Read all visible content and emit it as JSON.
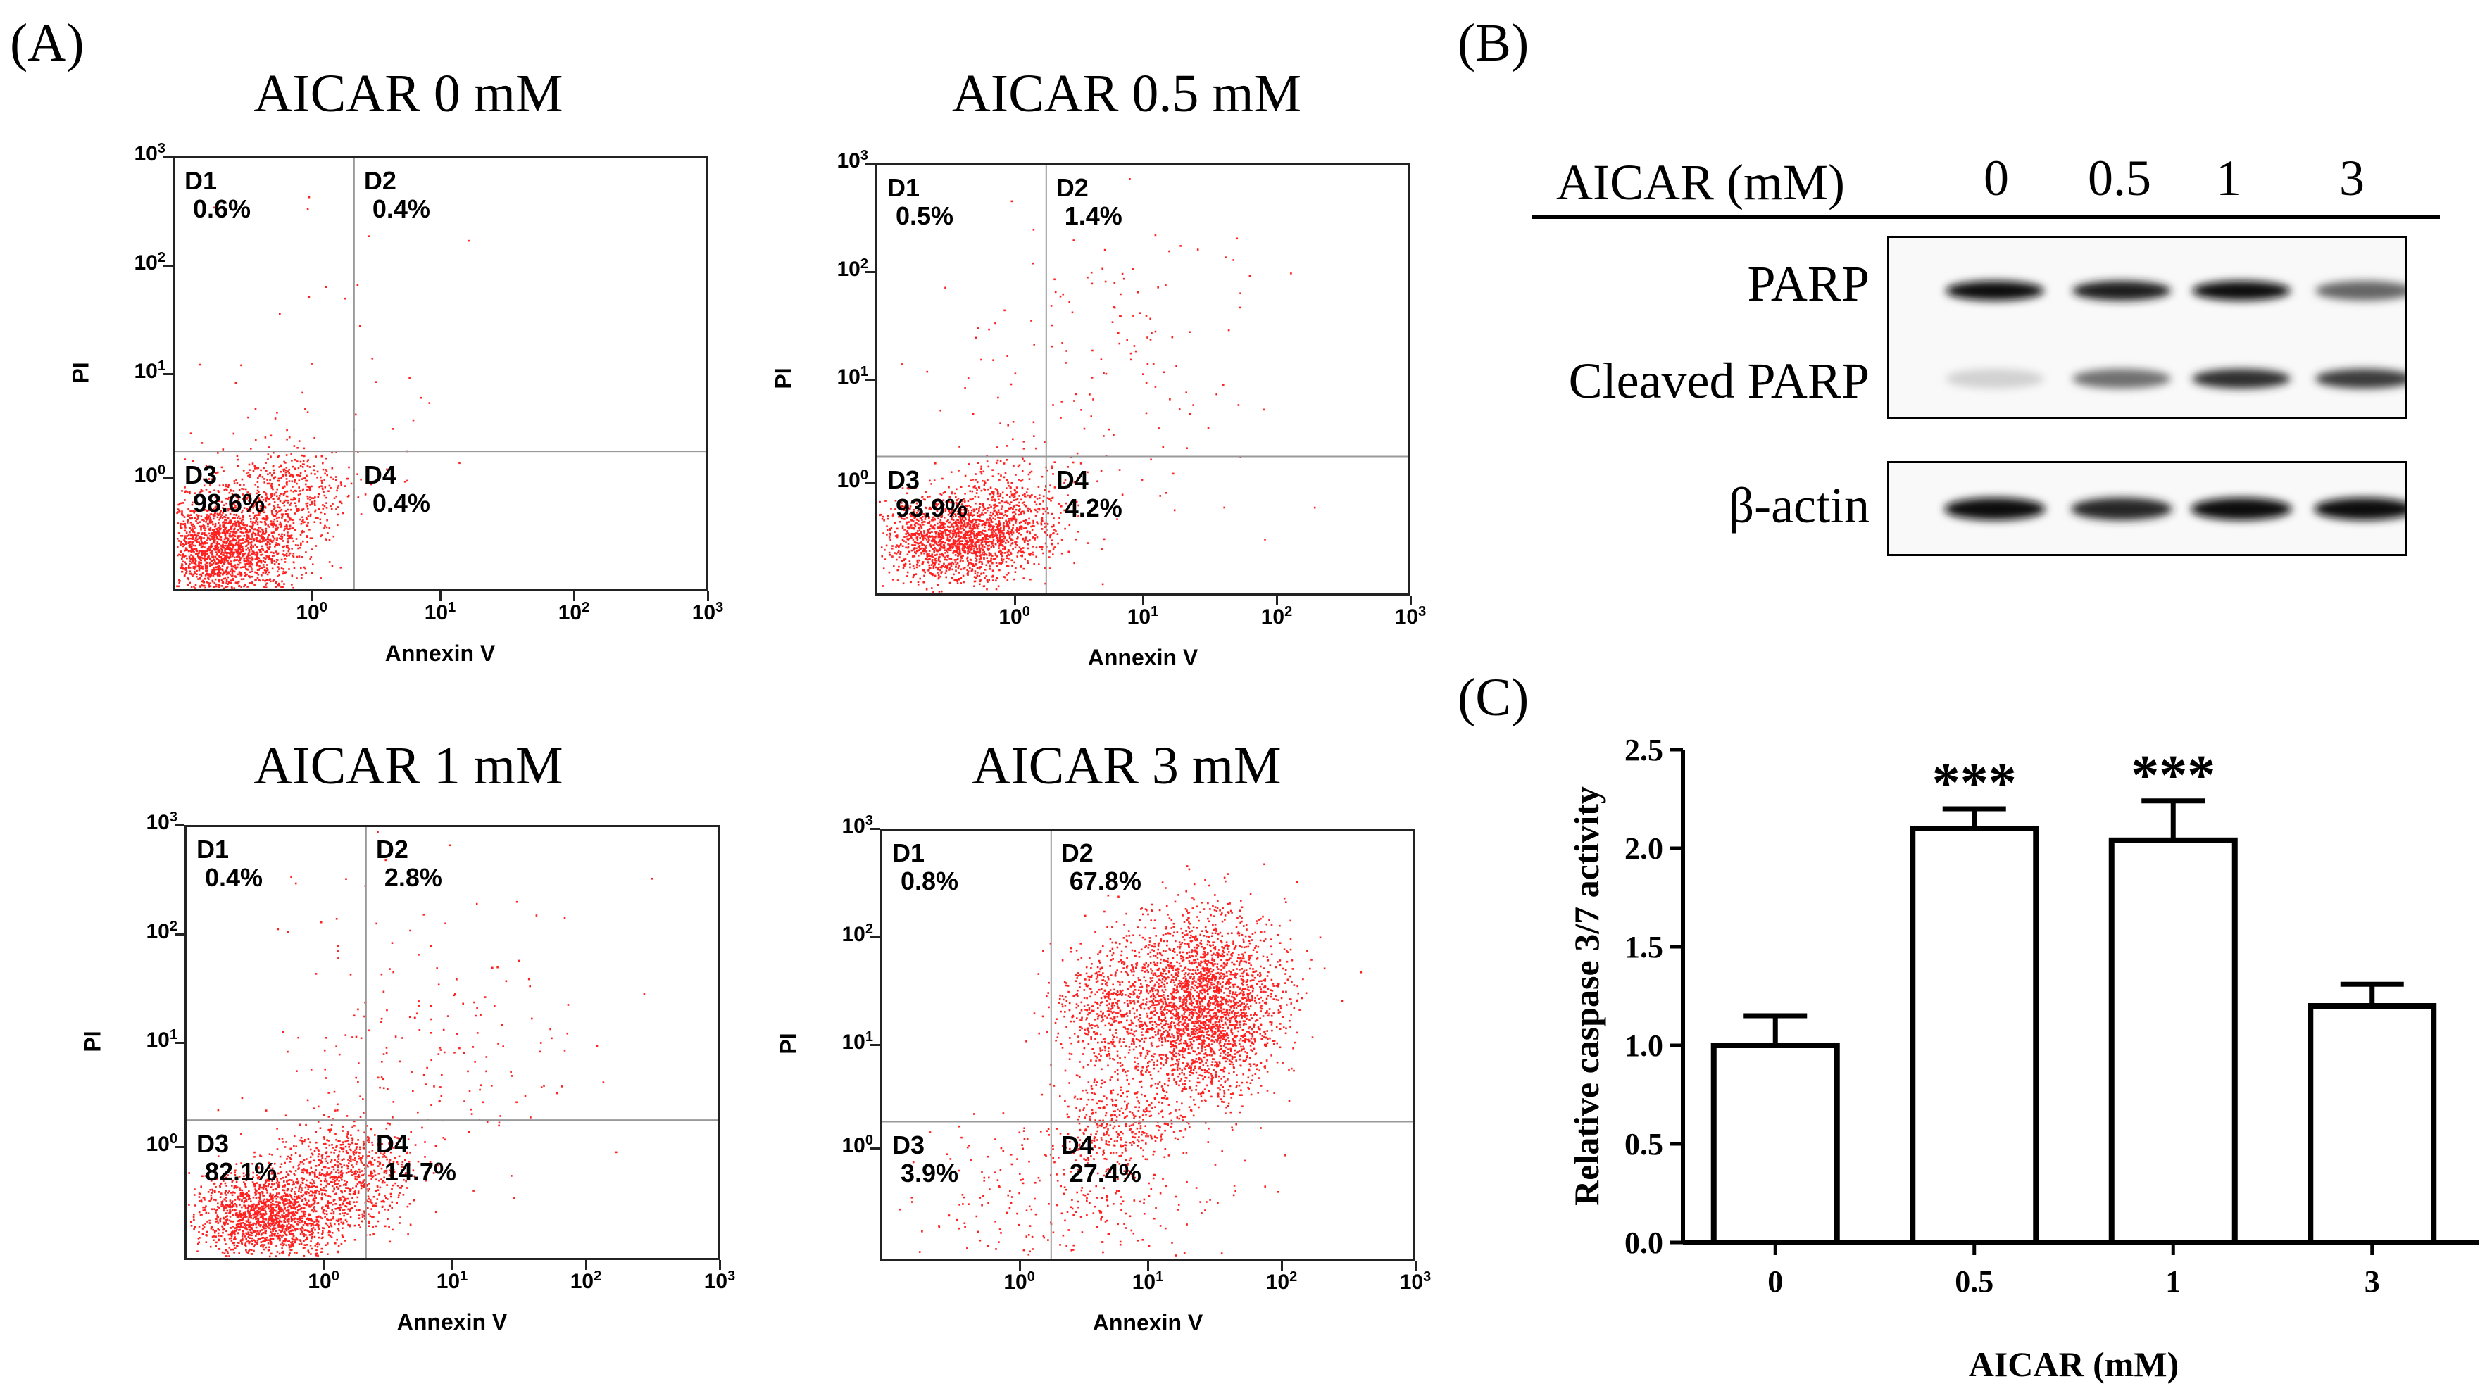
{
  "panel_labels": {
    "a": "(A)",
    "b": "(B)",
    "c": "(C)"
  },
  "flow_cytometry": {
    "x_axis_label": "Annexin V",
    "y_axis_label": "PI",
    "x_tick_base": "10",
    "y_tick_base": "10",
    "x_tick_exponents": [
      "0",
      "1",
      "2",
      "3"
    ],
    "y_tick_exponents": [
      "0",
      "1",
      "2",
      "3"
    ],
    "plots": [
      {
        "title": "AICAR 0 mM",
        "quadrants": [
          {
            "name": "D1",
            "value": "0.6%"
          },
          {
            "name": "D2",
            "value": "0.4%"
          },
          {
            "name": "D3",
            "value": "98.6%"
          },
          {
            "name": "D4",
            "value": "0.4%"
          }
        ]
      },
      {
        "title": "AICAR 0.5 mM",
        "quadrants": [
          {
            "name": "D1",
            "value": "0.5%"
          },
          {
            "name": "D2",
            "value": "1.4%"
          },
          {
            "name": "D3",
            "value": "93.9%"
          },
          {
            "name": "D4",
            "value": "4.2%"
          }
        ]
      },
      {
        "title": "AICAR 1 mM",
        "quadrants": [
          {
            "name": "D1",
            "value": "0.4%"
          },
          {
            "name": "D2",
            "value": "2.8%"
          },
          {
            "name": "D3",
            "value": "82.1%"
          },
          {
            "name": "D4",
            "value": "14.7%"
          }
        ]
      },
      {
        "title": "AICAR 3 mM",
        "quadrants": [
          {
            "name": "D1",
            "value": "0.8%"
          },
          {
            "name": "D2",
            "value": "67.8%"
          },
          {
            "name": "D3",
            "value": "3.9%"
          },
          {
            "name": "D4",
            "value": "27.4%"
          }
        ]
      }
    ]
  },
  "western_blot": {
    "header_label": "AICAR (mM)",
    "lanes": [
      "0",
      "0.5",
      "1",
      "3"
    ],
    "bands": [
      "PARP",
      "Cleaved PARP",
      "β-actin"
    ],
    "band_intensity": {
      "PARP": [
        1.0,
        0.95,
        1.0,
        0.6
      ],
      "Cleaved PARP": [
        0.1,
        0.55,
        0.85,
        0.8
      ],
      "β-actin": [
        1.0,
        0.9,
        1.0,
        1.0
      ]
    }
  },
  "chart_data": {
    "type": "bar",
    "categories": [
      "0",
      "0.5",
      "1",
      "3"
    ],
    "values": [
      1.0,
      2.1,
      2.04,
      1.2
    ],
    "errors": [
      0.15,
      0.1,
      0.2,
      0.11
    ],
    "significance": [
      "",
      "***",
      "***",
      ""
    ],
    "xlabel": "AICAR (mM)",
    "ylabel": "Relative caspase 3/7 activity",
    "ylim": [
      0.0,
      2.5
    ],
    "yticks": [
      "0.0",
      "0.5",
      "1.0",
      "1.5",
      "2.0",
      "2.5"
    ]
  }
}
